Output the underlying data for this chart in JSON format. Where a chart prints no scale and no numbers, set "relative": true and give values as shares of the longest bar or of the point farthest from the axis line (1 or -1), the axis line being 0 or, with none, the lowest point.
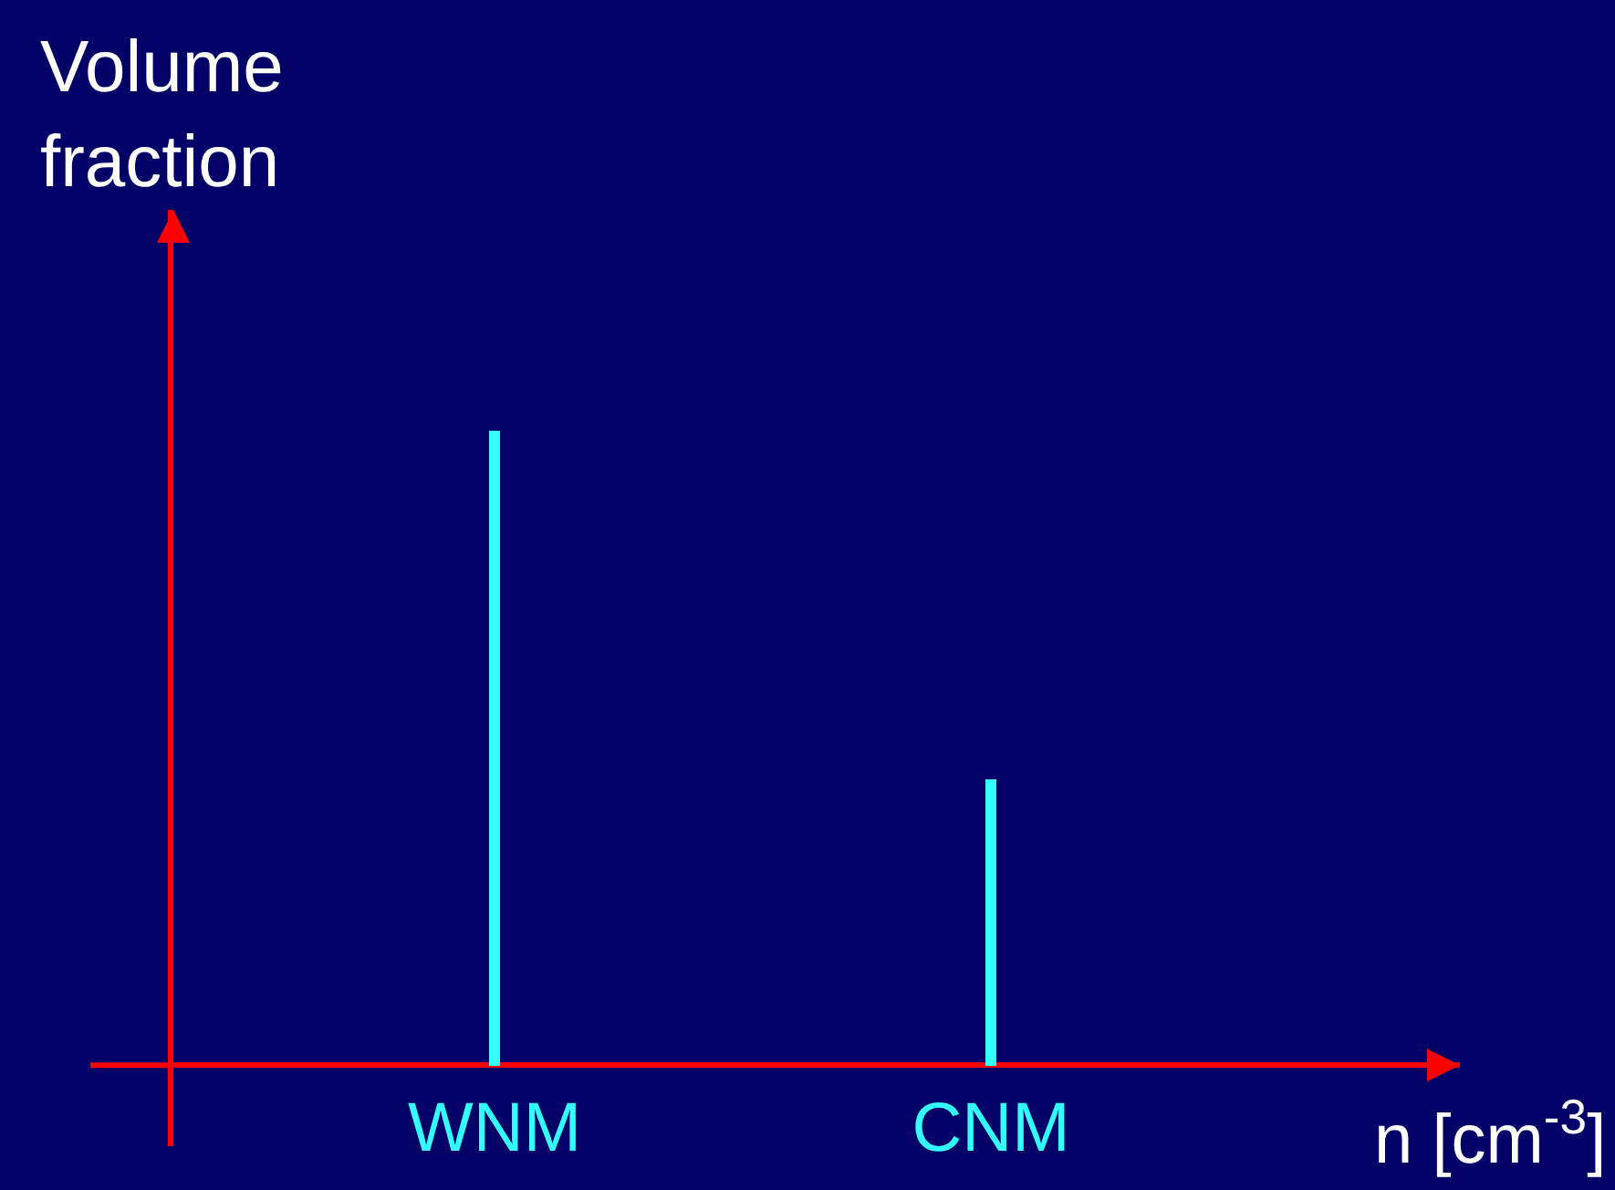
{
  "chart_data": {
    "type": "bar",
    "relative": true,
    "xlabel": "n [cm$^{-3}$]",
    "ylabel": "Volume fraction",
    "categories": [
      "WNM",
      "CNM"
    ],
    "values": [
      1,
      0.45
    ],
    "color": "#33ffff",
    "grid": false,
    "legend": false,
    "tick_labels": "x"
  }
}
